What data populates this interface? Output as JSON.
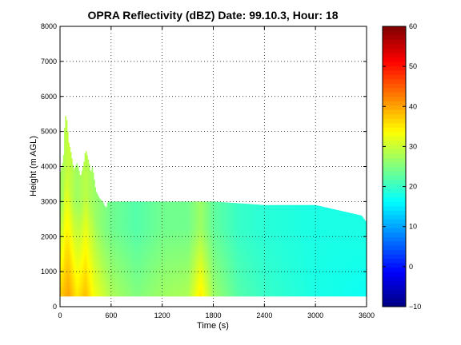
{
  "chart_data": {
    "type": "heatmap",
    "title": "OPRA Reflectivity (dBZ)  Date: 99.10.3, Hour: 18",
    "xlabel": "Time (s)",
    "ylabel": "Height (m AGL)",
    "xlim": [
      0,
      3600
    ],
    "ylim": [
      0,
      8000
    ],
    "xticks": [
      0,
      600,
      1200,
      1800,
      2400,
      3000,
      3600
    ],
    "yticks": [
      0,
      1000,
      2000,
      3000,
      4000,
      5000,
      6000,
      7000,
      8000
    ],
    "grid": true,
    "colorbar": {
      "label": "",
      "min": -10,
      "max": 60,
      "ticks": [
        -10,
        0,
        10,
        20,
        30,
        40,
        50,
        60
      ],
      "colormap": "jet"
    },
    "data_bottom_height_m": 300,
    "echo_top_profile": {
      "time_s": [
        0,
        40,
        60,
        80,
        100,
        120,
        160,
        200,
        240,
        280,
        300,
        340,
        360,
        380,
        420,
        460,
        500,
        540,
        560,
        600,
        1200,
        1800,
        2400,
        3000,
        3540,
        3600
      ],
      "top_m": [
        3800,
        4200,
        5500,
        5300,
        4700,
        4500,
        3900,
        4100,
        3700,
        4100,
        4500,
        4100,
        3800,
        4000,
        3300,
        3100,
        3000,
        2800,
        3000,
        3000,
        3000,
        3000,
        2900,
        2900,
        2600,
        2400
      ]
    },
    "reflectivity_dbz": {
      "time_s": [
        0,
        100,
        200,
        300,
        400,
        600,
        900,
        1200,
        1500,
        1650,
        1800,
        2100,
        2400,
        3000,
        3600
      ],
      "near_surface": [
        37,
        40,
        35,
        38,
        33,
        28,
        25,
        27,
        28,
        35,
        27,
        22,
        20,
        18,
        17
      ],
      "near_top": [
        27,
        30,
        27,
        29,
        27,
        24,
        22,
        24,
        24,
        27,
        23,
        20,
        19,
        18,
        18
      ]
    }
  }
}
